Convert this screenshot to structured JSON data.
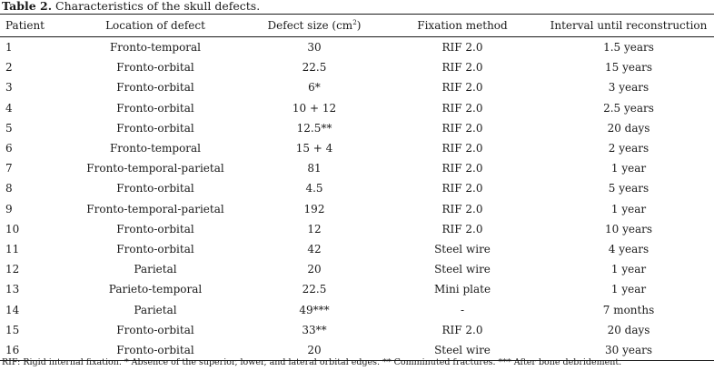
{
  "caption": {
    "label": "Table 2.",
    "text": " Characteristics of the skull defects."
  },
  "columns": {
    "patient": "Patient",
    "location": "Location of defect",
    "size_prefix": "Defect size (cm",
    "size_sup": "2",
    "size_suffix": ")",
    "fixation": "Fixation method",
    "interval": "Interval until reconstruction"
  },
  "rows": [
    {
      "patient": "1",
      "location": "Fronto-temporal",
      "size": "30",
      "fixation": "RIF 2.0",
      "interval": "1.5 years"
    },
    {
      "patient": "2",
      "location": "Fronto-orbital",
      "size": "22.5",
      "fixation": "RIF 2.0",
      "interval": "15 years"
    },
    {
      "patient": "3",
      "location": "Fronto-orbital",
      "size": "6*",
      "fixation": "RIF 2.0",
      "interval": "3 years"
    },
    {
      "patient": "4",
      "location": "Fronto-orbital",
      "size": "10 + 12",
      "fixation": "RIF 2.0",
      "interval": "2.5 years"
    },
    {
      "patient": "5",
      "location": "Fronto-orbital",
      "size": "12.5**",
      "fixation": "RIF 2.0",
      "interval": "20 days"
    },
    {
      "patient": "6",
      "location": "Fronto-temporal",
      "size": "15 + 4",
      "fixation": "RIF 2.0",
      "interval": "2 years"
    },
    {
      "patient": "7",
      "location": "Fronto-temporal-parietal",
      "size": "81",
      "fixation": "RIF 2.0",
      "interval": "1 year"
    },
    {
      "patient": "8",
      "location": "Fronto-orbital",
      "size": "4.5",
      "fixation": "RIF 2.0",
      "interval": "5 years"
    },
    {
      "patient": "9",
      "location": "Fronto-temporal-parietal",
      "size": "192",
      "fixation": "RIF 2.0",
      "interval": "1 year"
    },
    {
      "patient": "10",
      "location": "Fronto-orbital",
      "size": "12",
      "fixation": "RIF 2.0",
      "interval": "10 years"
    },
    {
      "patient": "11",
      "location": "Fronto-orbital",
      "size": "42",
      "fixation": "Steel wire",
      "interval": "4 years"
    },
    {
      "patient": "12",
      "location": "Parietal",
      "size": "20",
      "fixation": "Steel wire",
      "interval": "1 year"
    },
    {
      "patient": "13",
      "location": "Parieto-temporal",
      "size": "22.5",
      "fixation": "Mini plate",
      "interval": "1 year"
    },
    {
      "patient": "14",
      "location": "Parietal",
      "size": "49***",
      "fixation": "-",
      "interval": "7 months"
    },
    {
      "patient": "15",
      "location": "Fronto-orbital",
      "size": "33**",
      "fixation": "RIF 2.0",
      "interval": "20 days"
    },
    {
      "patient": "16",
      "location": "Fronto-orbital",
      "size": "20",
      "fixation": "Steel wire",
      "interval": "30 years"
    }
  ],
  "footnote": "RIF: Rigid internal fixation. * Absence of the superior, lower, and lateral orbital edges. ** Comminuted fractures. *** After bone debridement."
}
